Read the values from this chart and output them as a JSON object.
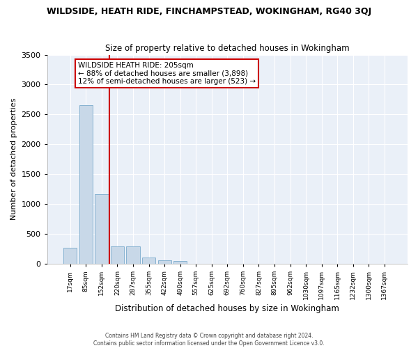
{
  "title": "WILDSIDE, HEATH RIDE, FINCHAMPSTEAD, WOKINGHAM, RG40 3QJ",
  "subtitle": "Size of property relative to detached houses in Wokingham",
  "xlabel": "Distribution of detached houses by size in Wokingham",
  "ylabel": "Number of detached properties",
  "bar_color": "#c8d8e8",
  "bar_edge_color": "#7aaacc",
  "vline_color": "#cc0000",
  "vline_x": 2.5,
  "annotation_text": "WILDSIDE HEATH RIDE: 205sqm\n← 88% of detached houses are smaller (3,898)\n12% of semi-detached houses are larger (523) →",
  "annotation_box_color": "#ffffff",
  "annotation_box_edge": "#cc0000",
  "categories": [
    "17sqm",
    "85sqm",
    "152sqm",
    "220sqm",
    "287sqm",
    "355sqm",
    "422sqm",
    "490sqm",
    "557sqm",
    "625sqm",
    "692sqm",
    "760sqm",
    "827sqm",
    "895sqm",
    "962sqm",
    "1030sqm",
    "1097sqm",
    "1165sqm",
    "1232sqm",
    "1300sqm",
    "1367sqm"
  ],
  "values": [
    270,
    2650,
    1160,
    285,
    285,
    100,
    55,
    40,
    0,
    0,
    0,
    0,
    0,
    0,
    0,
    0,
    0,
    0,
    0,
    0,
    0
  ],
  "ylim": [
    0,
    3500
  ],
  "yticks": [
    0,
    500,
    1000,
    1500,
    2000,
    2500,
    3000,
    3500
  ],
  "footer1": "Contains HM Land Registry data © Crown copyright and database right 2024.",
  "footer2": "Contains public sector information licensed under the Open Government Licence v3.0.",
  "bg_color": "#eaf0f8",
  "grid_color": "#ffffff"
}
